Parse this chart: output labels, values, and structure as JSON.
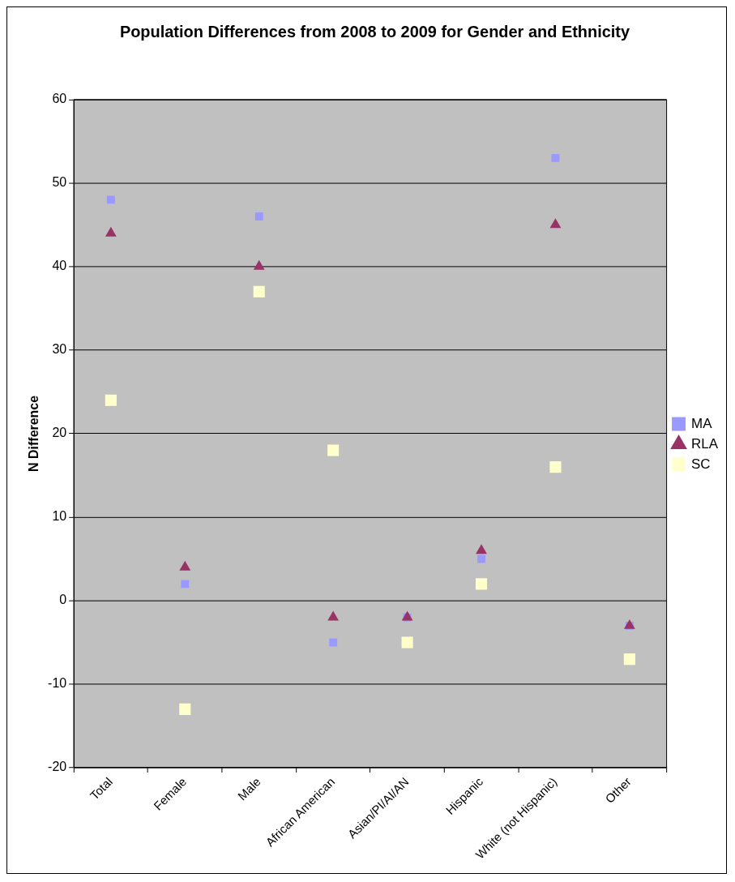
{
  "chart_data": {
    "type": "scatter",
    "title": "Population Differences from 2008 to 2009 for Gender and Ethnicity",
    "ylabel": "N Difference",
    "categories": [
      "Total",
      "Female",
      "Male",
      "African American",
      "Asian/PI/AI/AN",
      "Hispanic",
      "White (not Hispanic)",
      "Other"
    ],
    "series": [
      {
        "name": "MA",
        "color": "#9999ff",
        "marker": "square",
        "values": [
          48,
          2,
          46,
          -5,
          -2,
          5,
          53,
          -3
        ]
      },
      {
        "name": "RLA",
        "color": "#993366",
        "marker": "triangle",
        "values": [
          44,
          4,
          40,
          -2,
          -2,
          6,
          45,
          -3
        ]
      },
      {
        "name": "SC",
        "color": "#ffffcc",
        "marker": "square",
        "values": [
          24,
          -13,
          37,
          18,
          -5,
          2,
          16,
          -7
        ]
      }
    ],
    "ylim": [
      -20,
      60
    ],
    "yticks": [
      -20,
      -10,
      0,
      10,
      20,
      30,
      40,
      50,
      60
    ],
    "grid": "y",
    "legend": "right"
  }
}
